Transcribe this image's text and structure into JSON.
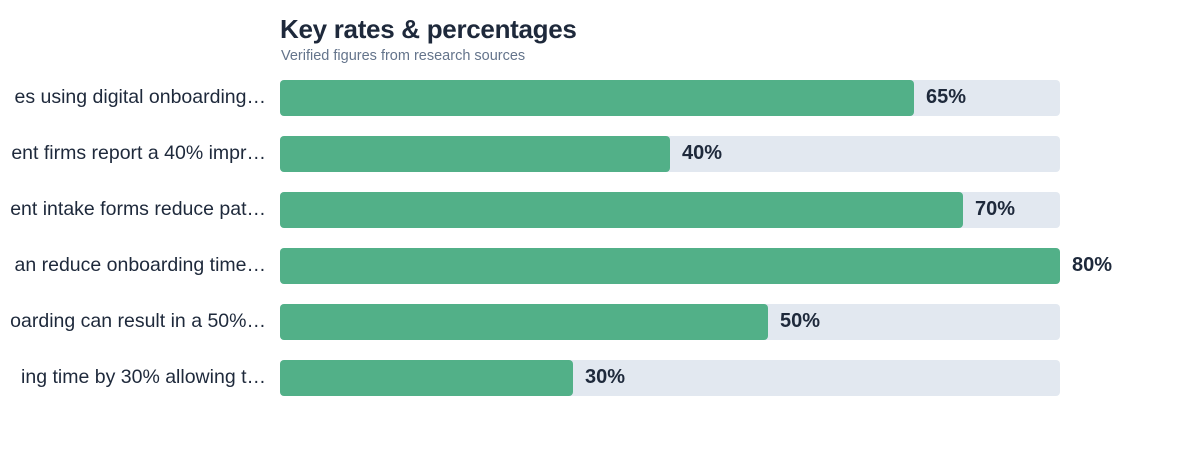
{
  "chart_data": {
    "type": "bar",
    "orientation": "horizontal",
    "title": "Key rates & percentages",
    "subtitle": "Verified figures from research sources",
    "categories": [
      "es using digital onboarding…",
      "ent firms report a 40% impr…",
      "ent intake forms reduce pat…",
      "an reduce onboarding time…",
      "oarding can result in a 50%…",
      "ing time by 30% allowing t…"
    ],
    "values": [
      65,
      40,
      70,
      80,
      50,
      30
    ],
    "value_labels": [
      "65%",
      "40%",
      "70%",
      "80%",
      "50%",
      "30%"
    ],
    "xlim": [
      0,
      80
    ],
    "grid": false,
    "colors": {
      "bar": "#52b088",
      "track": "#e2e8f0",
      "text": "#1e293b",
      "subtitle": "#64748b"
    }
  }
}
